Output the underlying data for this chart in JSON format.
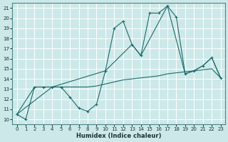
{
  "xlabel": "Humidex (Indice chaleur)",
  "background_color": "#cde8e8",
  "grid_color": "#ffffff",
  "line_color": "#1a6b6b",
  "xlim": [
    -0.5,
    23.5
  ],
  "ylim": [
    9.5,
    21.5
  ],
  "xticks": [
    0,
    1,
    2,
    3,
    4,
    5,
    6,
    7,
    8,
    9,
    10,
    11,
    12,
    13,
    14,
    15,
    16,
    17,
    18,
    19,
    20,
    21,
    22,
    23
  ],
  "yticks": [
    10,
    11,
    12,
    13,
    14,
    15,
    16,
    17,
    18,
    19,
    20,
    21
  ],
  "series1_x": [
    0,
    1,
    2,
    3,
    4,
    5,
    6,
    7,
    8,
    9,
    10,
    11,
    12,
    13,
    14,
    15,
    16,
    17,
    18,
    19,
    20,
    21,
    22,
    23
  ],
  "series1_y": [
    10.5,
    10.0,
    13.2,
    13.2,
    13.2,
    13.2,
    12.2,
    11.1,
    10.8,
    11.5,
    14.8,
    19.0,
    19.7,
    17.4,
    16.3,
    20.5,
    20.5,
    21.2,
    20.1,
    14.5,
    14.8,
    15.3,
    16.1,
    14.1
  ],
  "series2_x": [
    0,
    4,
    10,
    13,
    14,
    17,
    19,
    20,
    21,
    22,
    23
  ],
  "series2_y": [
    10.5,
    13.2,
    14.8,
    17.4,
    16.3,
    21.2,
    14.5,
    14.8,
    15.3,
    16.1,
    14.1
  ],
  "series3_x": [
    0,
    2,
    4,
    5,
    6,
    7,
    8,
    9,
    10,
    11,
    12,
    13,
    14,
    15,
    16,
    17,
    18,
    19,
    20,
    21,
    22,
    23
  ],
  "series3_y": [
    10.5,
    13.2,
    13.2,
    13.2,
    13.2,
    13.2,
    13.2,
    13.3,
    13.5,
    13.7,
    13.9,
    14.0,
    14.1,
    14.2,
    14.3,
    14.5,
    14.6,
    14.7,
    14.8,
    14.9,
    15.0,
    14.1
  ]
}
